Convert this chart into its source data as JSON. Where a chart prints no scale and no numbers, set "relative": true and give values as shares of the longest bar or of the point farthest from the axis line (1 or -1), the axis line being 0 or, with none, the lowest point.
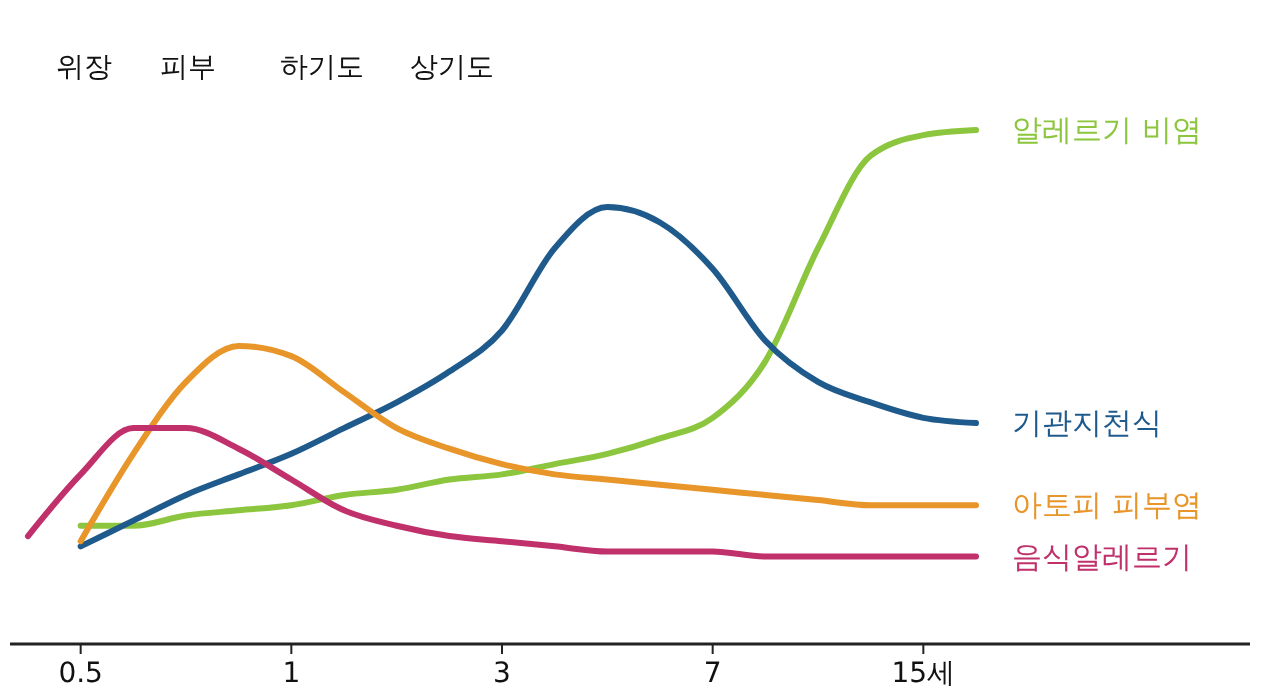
{
  "chart_data": {
    "type": "line",
    "relative": true,
    "annotations": [
      "위장",
      "피부",
      "하기도",
      "상기도"
    ],
    "categories": [
      null,
      "0.5",
      null,
      null,
      null,
      "1",
      null,
      null,
      null,
      "3",
      null,
      null,
      null,
      "7",
      null,
      null,
      null,
      "15세",
      null
    ],
    "legend": false,
    "marker": "none",
    "line_style": "solid",
    "series": [
      {
        "name": "알레르기 비염",
        "color": "#8cc63f",
        "values": [
          null,
          0.23,
          0.23,
          0.25,
          0.26,
          0.27,
          0.29,
          0.3,
          0.32,
          0.33,
          0.35,
          0.37,
          0.4,
          0.44,
          0.55,
          0.77,
          0.95,
          0.99,
          1
        ]
      },
      {
        "name": "기관지천식",
        "color": "#1f5a8c",
        "values": [
          null,
          0.19,
          0.24,
          0.29,
          0.33,
          0.37,
          0.42,
          0.47,
          0.53,
          0.61,
          0.77,
          0.85,
          0.82,
          0.73,
          0.59,
          0.51,
          0.47,
          0.44,
          0.43
        ]
      },
      {
        "name": "아토피 피부염",
        "color": "#e8952a",
        "values": [
          null,
          0.2,
          0.37,
          0.51,
          0.58,
          0.56,
          0.49,
          0.42,
          0.38,
          0.35,
          0.33,
          0.32,
          0.31,
          0.3,
          0.29,
          0.28,
          0.27,
          0.27,
          0.27
        ]
      },
      {
        "name": "음식알레르기",
        "color": "#c0306a",
        "values": [
          0.21,
          0.33,
          0.42,
          0.42,
          0.38,
          0.32,
          0.26,
          0.23,
          0.21,
          0.2,
          0.19,
          0.18,
          0.18,
          0.18,
          0.17,
          0.17,
          0.17,
          0.17,
          0.17
        ]
      }
    ]
  }
}
